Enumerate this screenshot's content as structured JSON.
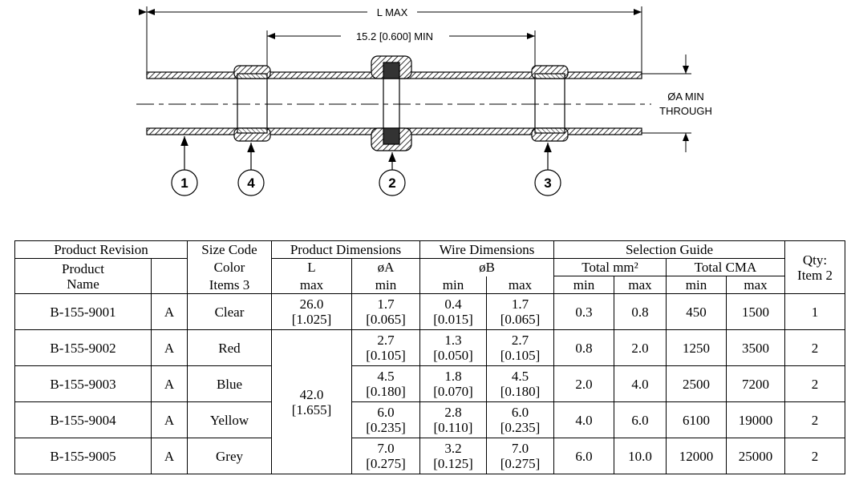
{
  "drawing": {
    "length_label": "L  MAX",
    "min_label": "15.2 [0.600]  MIN",
    "bore_label": "ØA  MIN",
    "through_label": "THROUGH",
    "callouts": [
      "1",
      "4",
      "2",
      "3"
    ]
  },
  "table": {
    "header": {
      "product_revision": "Product Revision",
      "size_code": "Size Code",
      "product_dimensions": "Product Dimensions",
      "wire_dimensions": "Wire Dimensions",
      "selection_guide": "Selection Guide",
      "qty": [
        "Qty:",
        "Item 2"
      ],
      "product_name": [
        "Product",
        "Name"
      ],
      "color": "Color",
      "items": "Items 3",
      "l": "L",
      "a": "øA",
      "b": "øB",
      "total_mm2": "Total mm²",
      "total_cma": "Total CMA",
      "l_sub": "max",
      "a_sub": "min",
      "b_min": "min",
      "b_max": "max",
      "mm2_min": "min",
      "mm2_max": "max",
      "cma_min": "min",
      "cma_max": "max"
    },
    "l_shared": [
      "42.0",
      "[1.655]"
    ],
    "rows": [
      {
        "name": "B-155-9001",
        "rev": "A",
        "color": "Clear",
        "l": [
          "26.0",
          "[1.025]"
        ],
        "a": [
          "1.7",
          "[0.065]"
        ],
        "b_min": [
          "0.4",
          "[0.015]"
        ],
        "b_max": [
          "1.7",
          "[0.065]"
        ],
        "mm2_min": "0.3",
        "mm2_max": "0.8",
        "cma_min": "450",
        "cma_max": "1500",
        "qty": "1"
      },
      {
        "name": "B-155-9002",
        "rev": "A",
        "color": "Red",
        "a": [
          "2.7",
          "[0.105]"
        ],
        "b_min": [
          "1.3",
          "[0.050]"
        ],
        "b_max": [
          "2.7",
          "[0.105]"
        ],
        "mm2_min": "0.8",
        "mm2_max": "2.0",
        "cma_min": "1250",
        "cma_max": "3500",
        "qty": "2"
      },
      {
        "name": "B-155-9003",
        "rev": "A",
        "color": "Blue",
        "a": [
          "4.5",
          "[0.180]"
        ],
        "b_min": [
          "1.8",
          "[0.070]"
        ],
        "b_max": [
          "4.5",
          "[0.180]"
        ],
        "mm2_min": "2.0",
        "mm2_max": "4.0",
        "cma_min": "2500",
        "cma_max": "7200",
        "qty": "2"
      },
      {
        "name": "B-155-9004",
        "rev": "A",
        "color": "Yellow",
        "a": [
          "6.0",
          "[0.235]"
        ],
        "b_min": [
          "2.8",
          "[0.110]"
        ],
        "b_max": [
          "6.0",
          "[0.235]"
        ],
        "mm2_min": "4.0",
        "mm2_max": "6.0",
        "cma_min": "6100",
        "cma_max": "19000",
        "qty": "2"
      },
      {
        "name": "B-155-9005",
        "rev": "A",
        "color": "Grey",
        "a": [
          "7.0",
          "[0.275]"
        ],
        "b_min": [
          "3.2",
          "[0.125]"
        ],
        "b_max": [
          "7.0",
          "[0.275]"
        ],
        "mm2_min": "6.0",
        "mm2_max": "10.0",
        "cma_min": "12000",
        "cma_max": "25000",
        "qty": "2"
      }
    ]
  }
}
